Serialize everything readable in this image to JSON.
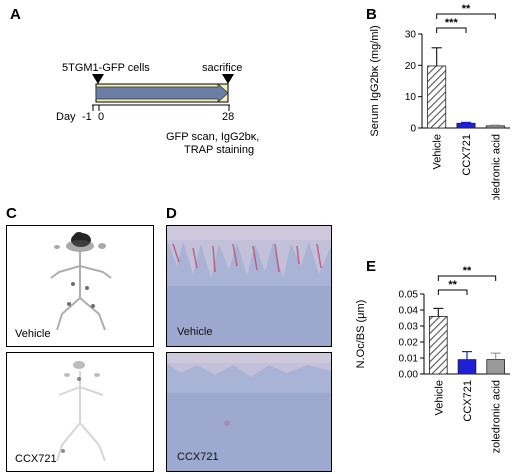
{
  "panels": {
    "a": {
      "letter": "A",
      "cells_label": "5TGM1-GFP cells",
      "sacrifice_label": "sacrifice",
      "day_label": "Day",
      "tick_neg1": "-1",
      "tick_0": "0",
      "tick_28": "28",
      "endpoint_line1": "GFP scan, IgG2bκ,",
      "endpoint_line2": "TRAP staining"
    },
    "b": {
      "letter": "B"
    },
    "c": {
      "letter": "C",
      "top_label": "Vehicle",
      "bottom_label": "CCX721"
    },
    "d": {
      "letter": "D",
      "top_label": "Vehicle",
      "bottom_label": "CCX721"
    },
    "e": {
      "letter": "E"
    }
  },
  "colors": {
    "vehicle_hatch": "#555555",
    "ccx721": "#1f1fd6",
    "zoledronic": "#9a9a9a",
    "arrow_fill": "#6b7fa6",
    "arrow_band": "#f3f0b8"
  },
  "chart_data": [
    {
      "id": "B",
      "type": "bar",
      "categories": [
        "Vehicle",
        "CCX721",
        "zoledronic acid"
      ],
      "values": [
        19.8,
        1.5,
        0.7
      ],
      "errors": [
        5.8,
        0.3,
        0.2
      ],
      "ylabel": "Serum IgG2bκ (mg/ml)",
      "ylim": [
        0,
        30
      ],
      "yticks": [
        "0",
        "10",
        "20",
        "30"
      ],
      "significance": [
        {
          "from": 0,
          "to": 1,
          "label": "***"
        },
        {
          "from": 0,
          "to": 2,
          "label": "**"
        }
      ]
    },
    {
      "id": "E",
      "type": "bar",
      "categories": [
        "Vehicle",
        "CCX721",
        "zoledronic acid"
      ],
      "values": [
        0.036,
        0.009,
        0.009
      ],
      "errors": [
        0.005,
        0.005,
        0.004
      ],
      "ylabel": "N.Oc/BS (μm)",
      "ylim": [
        0,
        0.05
      ],
      "yticks": [
        "0.00",
        "0.01",
        "0.02",
        "0.03",
        "0.04",
        "0.05"
      ],
      "significance": [
        {
          "from": 0,
          "to": 1,
          "label": "**"
        },
        {
          "from": 0,
          "to": 2,
          "label": "**"
        }
      ]
    }
  ]
}
